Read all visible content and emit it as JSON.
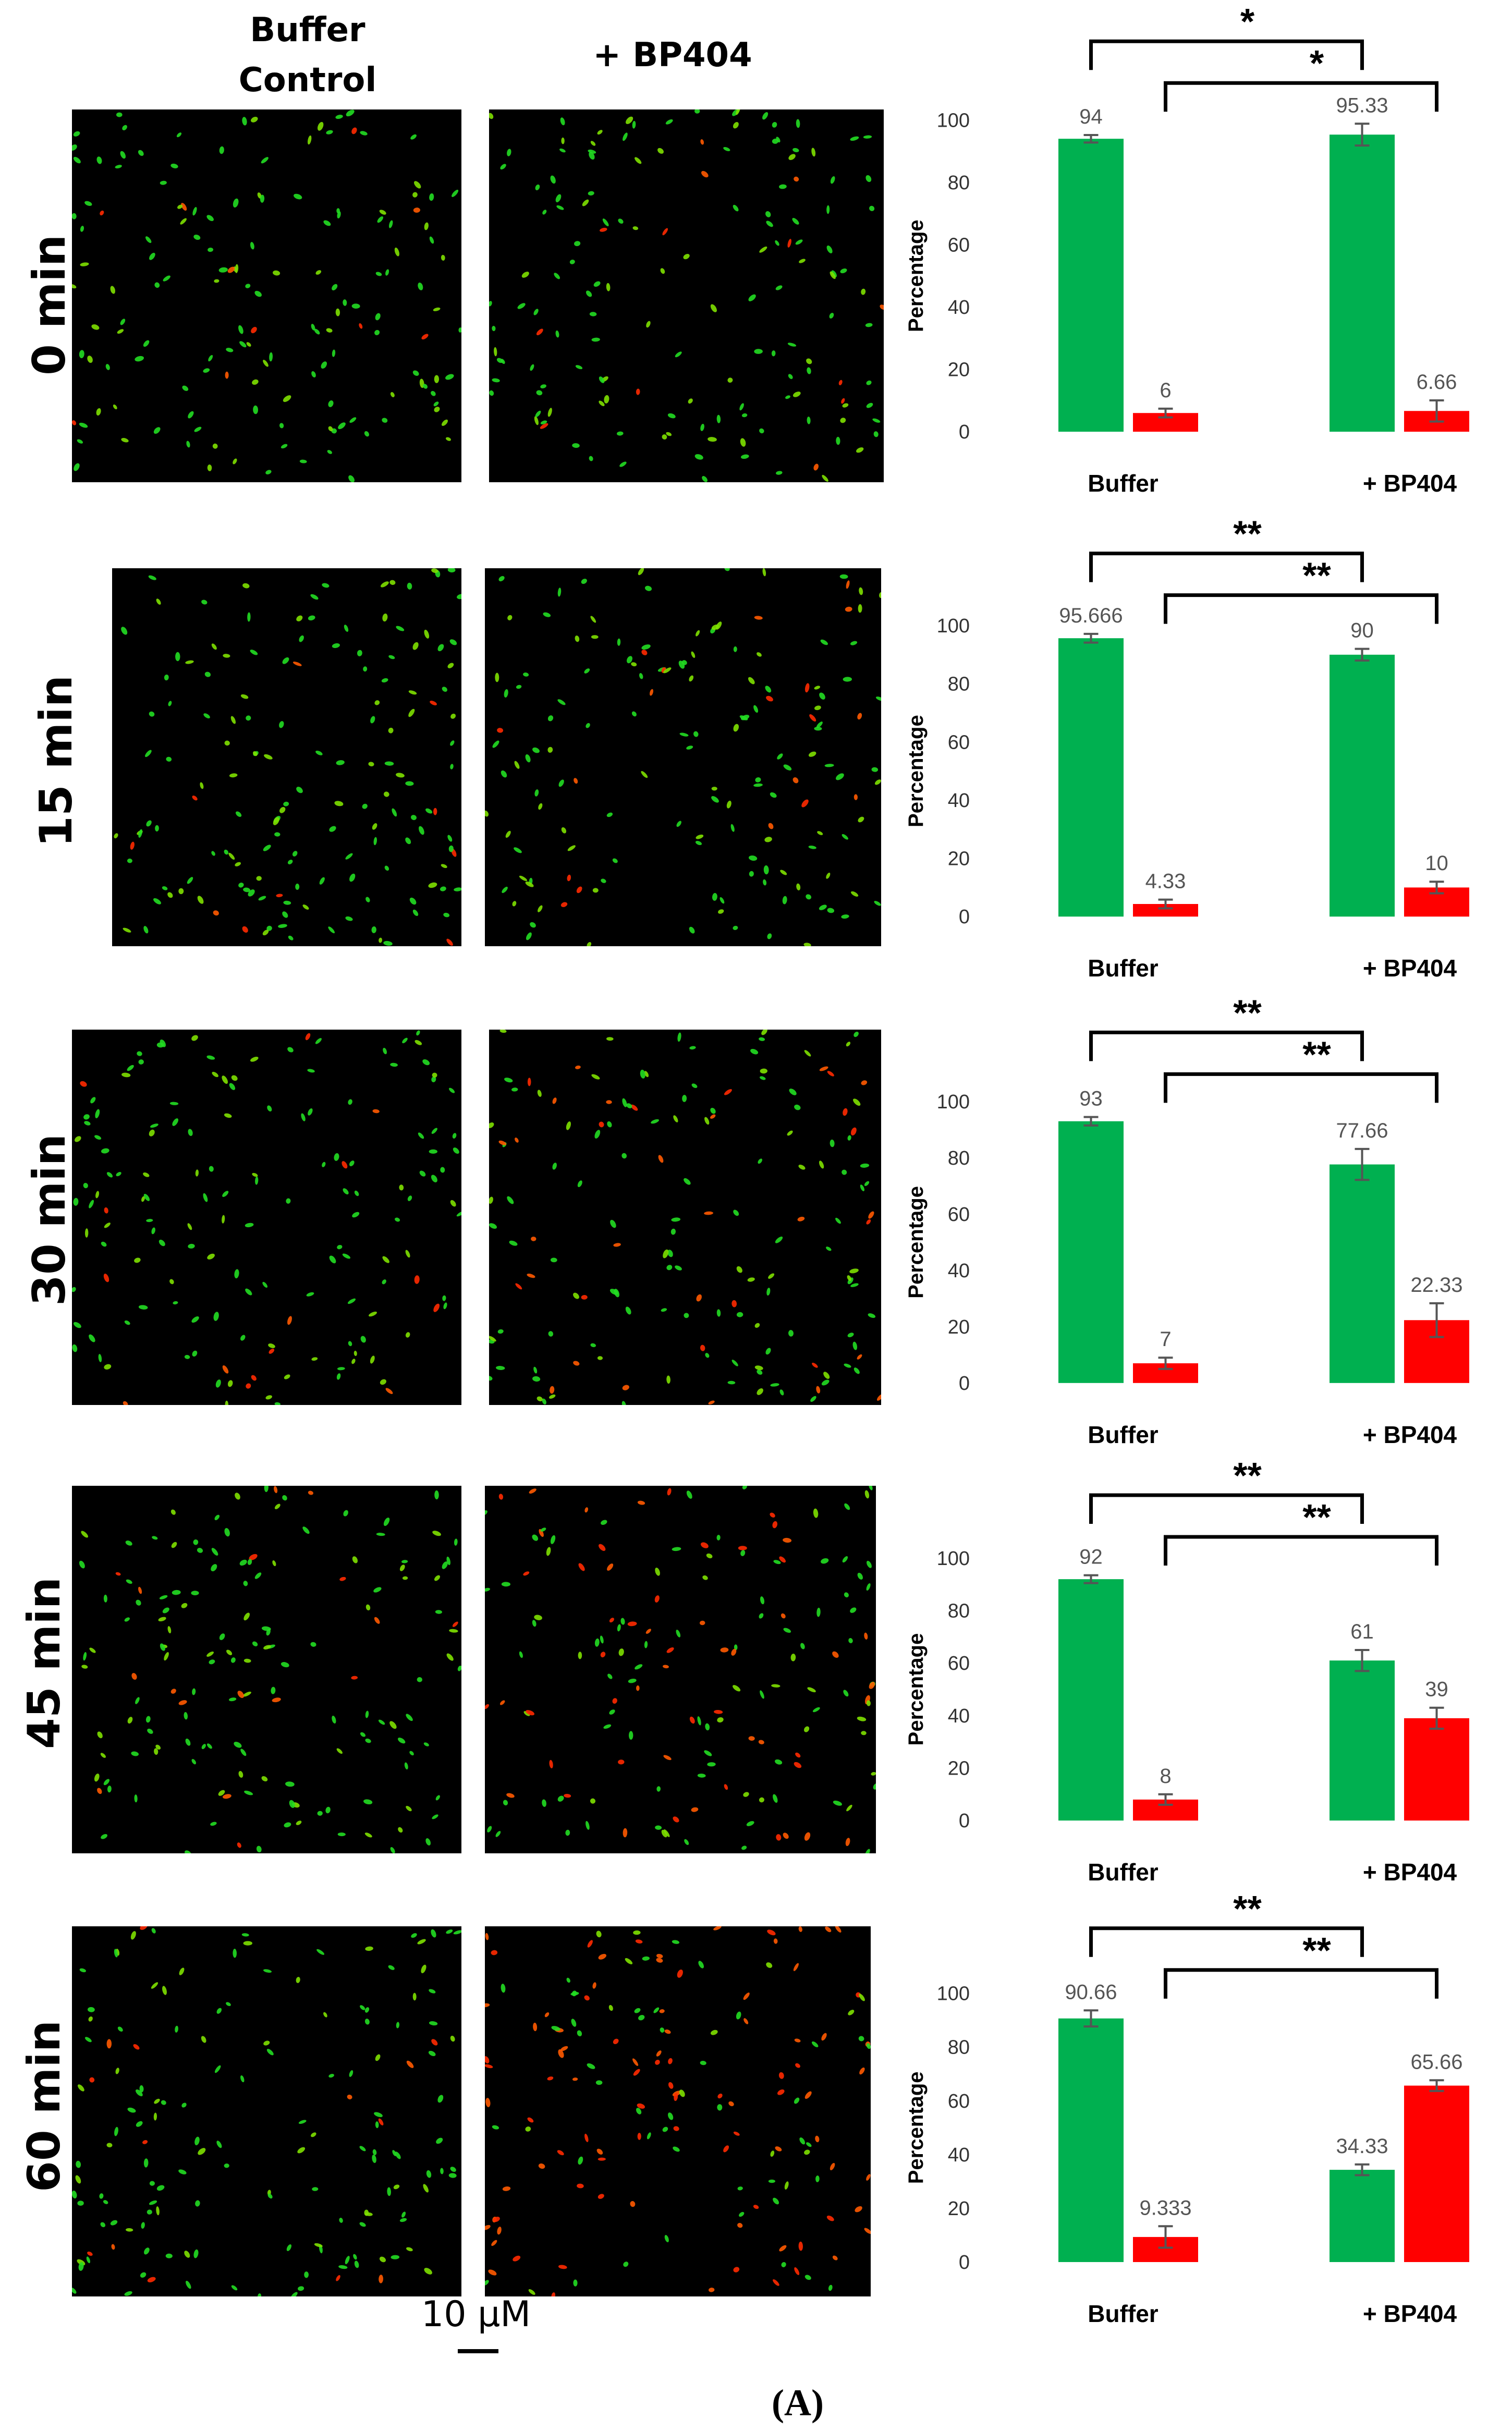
{
  "columns": {
    "buffer_control": "Buffer\nControl",
    "bp404": "+ BP404"
  },
  "rows": [
    {
      "time": "0 min"
    },
    {
      "time": "15 min"
    },
    {
      "time": "30 min"
    },
    {
      "time": "45 min"
    },
    {
      "time": "60 min"
    }
  ],
  "scale_bar": "10 μM",
  "panel_label": "(A)",
  "colors": {
    "green": "#00b050",
    "red": "#ff0000"
  },
  "chart_data": [
    {
      "type": "bar",
      "time": "0 min",
      "categories": [
        "Buffer",
        "+ BP404"
      ],
      "series": [
        {
          "values": [
            94,
            95.33
          ],
          "color": "#00b050"
        },
        {
          "values": [
            6,
            6.66
          ],
          "color": "#ff0000"
        }
      ],
      "data_labels": [
        [
          "94",
          "95.33"
        ],
        [
          "6",
          "6.66"
        ]
      ],
      "errors": [
        [
          1.2,
          3.5
        ],
        [
          1.4,
          3.4
        ]
      ],
      "ylabel": "Percentage",
      "ylim": [
        0,
        100
      ],
      "yticks": [
        0,
        20,
        40,
        60,
        80,
        100
      ],
      "sig_top": "*",
      "sig_bottom": "*"
    },
    {
      "type": "bar",
      "time": "15 min",
      "categories": [
        "Buffer",
        "+ BP404"
      ],
      "series": [
        {
          "values": [
            95.666,
            90
          ],
          "color": "#00b050"
        },
        {
          "values": [
            4.33,
            10
          ],
          "color": "#ff0000"
        }
      ],
      "data_labels": [
        [
          "95.666",
          "90"
        ],
        [
          "4.33",
          "10"
        ]
      ],
      "errors": [
        [
          1.5,
          2
        ],
        [
          1.5,
          2
        ]
      ],
      "ylabel": "Percentage",
      "ylim": [
        0,
        100
      ],
      "yticks": [
        0,
        20,
        40,
        60,
        80,
        100
      ],
      "sig_top": "**",
      "sig_bottom": "**"
    },
    {
      "type": "bar",
      "time": "30 min",
      "categories": [
        "Buffer",
        "+ BP404"
      ],
      "series": [
        {
          "values": [
            93,
            77.66
          ],
          "color": "#00b050"
        },
        {
          "values": [
            7,
            22.33
          ],
          "color": "#ff0000"
        }
      ],
      "data_labels": [
        [
          "93",
          "77.66"
        ],
        [
          "7",
          "22.33"
        ]
      ],
      "errors": [
        [
          1.5,
          5.5
        ],
        [
          2,
          6
        ]
      ],
      "ylabel": "Percentage",
      "ylim": [
        0,
        100
      ],
      "yticks": [
        0,
        20,
        40,
        60,
        80,
        100
      ],
      "sig_top": "**",
      "sig_bottom": "**"
    },
    {
      "type": "bar",
      "time": "45 min",
      "categories": [
        "Buffer",
        "+ BP404"
      ],
      "series": [
        {
          "values": [
            92,
            61
          ],
          "color": "#00b050"
        },
        {
          "values": [
            8,
            39
          ],
          "color": "#ff0000"
        }
      ],
      "data_labels": [
        [
          "92",
          "61"
        ],
        [
          "8",
          "39"
        ]
      ],
      "errors": [
        [
          1.5,
          4
        ],
        [
          2,
          4
        ]
      ],
      "ylabel": "Percentage",
      "ylim": [
        0,
        100
      ],
      "yticks": [
        0,
        20,
        40,
        60,
        80,
        100
      ],
      "sig_top": "**",
      "sig_bottom": "**"
    },
    {
      "type": "bar",
      "time": "60 min",
      "categories": [
        "Buffer",
        "+ BP404"
      ],
      "series": [
        {
          "values": [
            90.66,
            34.33
          ],
          "color": "#00b050"
        },
        {
          "values": [
            9.333,
            65.66
          ],
          "color": "#ff0000"
        }
      ],
      "data_labels": [
        [
          "90.66",
          "34.33"
        ],
        [
          "9.333",
          "65.66"
        ]
      ],
      "errors": [
        [
          3,
          2
        ],
        [
          4,
          2
        ]
      ],
      "ylabel": "Percentage",
      "ylim": [
        0,
        100
      ],
      "yticks": [
        0,
        20,
        40,
        60,
        80,
        100
      ],
      "sig_top": "**",
      "sig_bottom": "**"
    }
  ]
}
